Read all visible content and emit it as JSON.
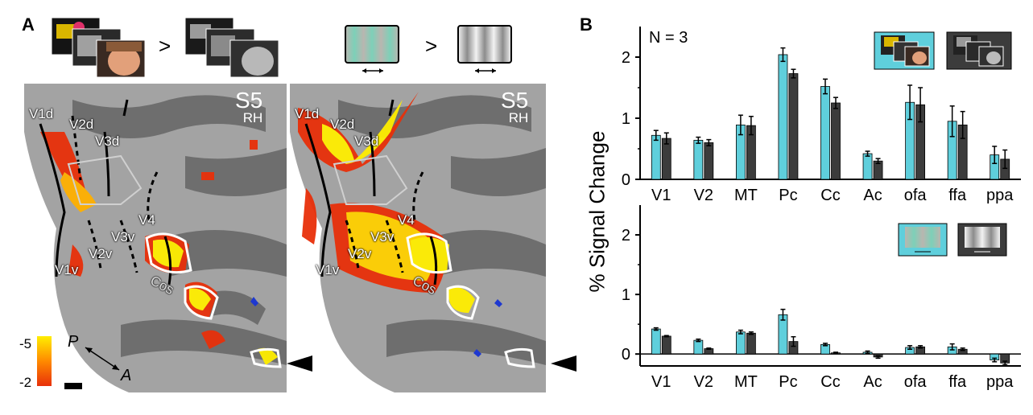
{
  "panel_a": {
    "letter": "A",
    "comparison_symbol": ">",
    "subject": "S5",
    "hemisphere": "RH",
    "area_labels": [
      "V1d",
      "V2d",
      "V3d",
      "V4",
      "V3v",
      "V2v",
      "V1v",
      "Cos"
    ],
    "colorbar": {
      "max_label": "-5",
      "min_label": "-2"
    },
    "orientation": {
      "posterior": "P",
      "anterior": "A"
    },
    "colors": {
      "cortex_light": "#a3a3a3",
      "cortex_dark": "#6e6e6e",
      "activation_hot": "#ffee00",
      "activation_warm": "#e8300a",
      "roi_outline": "#ffffff"
    }
  },
  "panel_b": {
    "letter": "B",
    "n_label": "N = 3",
    "ylabel": "% Signal Change",
    "colors": {
      "color_condition": "#5fcfdc",
      "gray_condition": "#3c3c3c"
    }
  },
  "chart_data": [
    {
      "type": "bar",
      "categories": [
        "V1",
        "V2",
        "MT",
        "Pc",
        "Cc",
        "Ac",
        "ofa",
        "ffa",
        "ppa"
      ],
      "ylim": [
        0,
        2.5
      ],
      "yticks": [
        "0",
        "1",
        "2"
      ],
      "series": [
        {
          "values": [
            0.72,
            0.64,
            0.89,
            2.04,
            1.52,
            0.42,
            1.26,
            0.95,
            0.4
          ],
          "errors": [
            0.08,
            0.05,
            0.16,
            0.11,
            0.12,
            0.04,
            0.28,
            0.25,
            0.14
          ]
        },
        {
          "values": [
            0.67,
            0.6,
            0.88,
            1.73,
            1.25,
            0.3,
            1.22,
            0.89,
            0.33
          ],
          "errors": [
            0.09,
            0.05,
            0.15,
            0.07,
            0.09,
            0.04,
            0.28,
            0.22,
            0.15
          ]
        }
      ]
    },
    {
      "type": "bar",
      "categories": [
        "V1",
        "V2",
        "MT",
        "Pc",
        "Cc",
        "Ac",
        "ofa",
        "ffa",
        "ppa"
      ],
      "ylim": [
        -0.2,
        2.5
      ],
      "yticks": [
        "0",
        "1",
        "2"
      ],
      "series": [
        {
          "values": [
            0.42,
            0.23,
            0.37,
            0.66,
            0.16,
            0.03,
            0.11,
            0.12,
            -0.1
          ],
          "errors": [
            0.02,
            0.02,
            0.03,
            0.09,
            0.02,
            0.02,
            0.03,
            0.05,
            0.03
          ]
        },
        {
          "values": [
            0.3,
            0.09,
            0.35,
            0.21,
            0.02,
            -0.05,
            0.12,
            0.08,
            -0.15
          ],
          "errors": [
            0.01,
            0.01,
            0.02,
            0.08,
            0.01,
            0.02,
            0.02,
            0.02,
            0.03
          ]
        }
      ]
    }
  ]
}
